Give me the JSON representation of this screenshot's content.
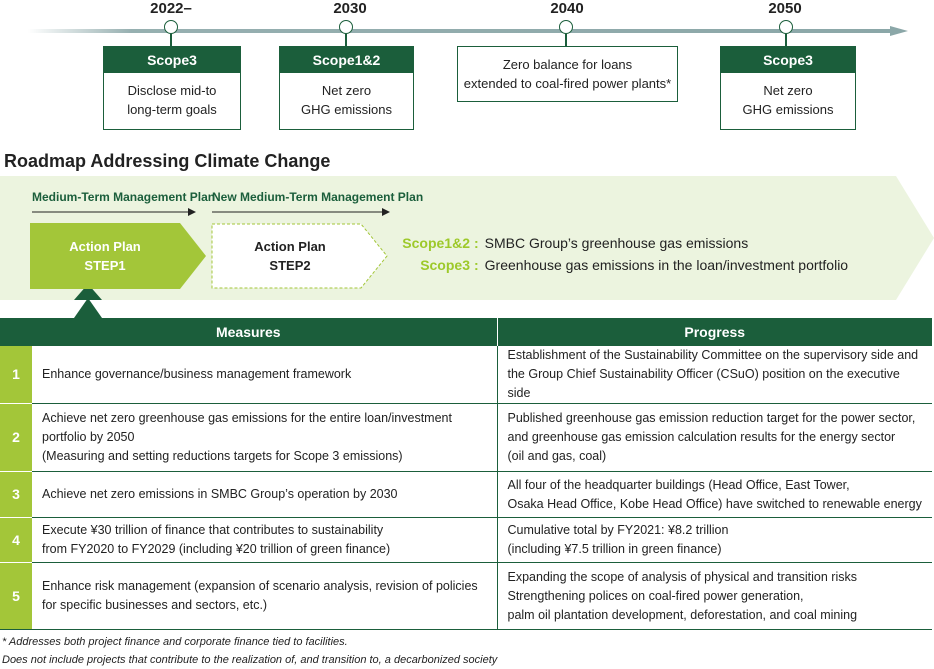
{
  "timeline": {
    "milestones": [
      {
        "year": "2022–",
        "scope": "Scope3",
        "lines": [
          "Disclose mid-to",
          "long-term goals"
        ]
      },
      {
        "year": "2030",
        "scope": "Scope1&2",
        "lines": [
          "Net zero",
          "GHG emissions"
        ]
      },
      {
        "year": "2040",
        "scope": "",
        "lines": [
          "Zero balance for loans",
          "extended to coal-fired power plants*"
        ]
      },
      {
        "year": "2050",
        "scope": "Scope3",
        "lines": [
          "Net zero",
          "GHG emissions"
        ]
      }
    ]
  },
  "roadmap": {
    "title": "Roadmap Addressing Climate Change",
    "plans": [
      "Medium-Term Management Plan",
      "New Medium-Term Management Plan"
    ],
    "step1": {
      "line1": "Action Plan",
      "line2": "STEP1"
    },
    "step2": {
      "line1": "Action Plan",
      "line2": "STEP2"
    },
    "scopes": [
      {
        "key": "Scope1&2",
        "desc": "SMBC Group’s greenhouse gas emissions"
      },
      {
        "key": "Scope3",
        "desc": "Greenhouse gas emissions in the loan/investment portfolio"
      }
    ]
  },
  "colors": {
    "dark_green": "#1b5e3b",
    "lime": "#a3c639",
    "light_band": "#ecf4df"
  },
  "table": {
    "headers": {
      "measures": "Measures",
      "progress": "Progress"
    },
    "rows": [
      {
        "num": "1",
        "measures": [
          "Enhance governance/business management framework"
        ],
        "progress": [
          "Establishment of the Sustainability Committee on the supervisory side and",
          "the Group Chief Sustainability Officer (CSuO) position on the executive side"
        ]
      },
      {
        "num": "2",
        "measures": [
          "Achieve net zero greenhouse gas emissions for the entire loan/investment",
          "portfolio by 2050",
          "(Measuring and setting reductions targets for  Scope 3 emissions)"
        ],
        "progress": [
          "Published greenhouse gas emission reduction target for the power sector,",
          "and greenhouse gas emission calculation results for the energy sector",
          "(oil and gas, coal)"
        ]
      },
      {
        "num": "3",
        "measures": [
          "Achieve net zero emissions in SMBC Group’s operation by 2030"
        ],
        "progress": [
          "All four of the headquarter buildings (Head Office, East Tower,",
          "Osaka Head Office, Kobe Head Office) have switched to renewable energy"
        ]
      },
      {
        "num": "4",
        "measures": [
          "Execute ¥30 trillion of finance that contributes to sustainability",
          "from FY2020 to FY2029 (including ¥20 trillion of green finance)"
        ],
        "progress": [
          "Cumulative total by FY2021: ¥8.2 trillion",
          "(including ¥7.5 trillion in green finance)"
        ]
      },
      {
        "num": "5",
        "measures": [
          "Enhance risk management (expansion of scenario analysis, revision of policies",
          "for specific businesses and sectors, etc.)"
        ],
        "progress": [
          "Expanding the scope of analysis of physical and transition risks",
          "Strengthening polices on coal-fired power generation,",
          "palm oil plantation development, deforestation, and coal mining"
        ]
      }
    ]
  },
  "notes": [
    "* Addresses both project finance and corporate finance tied to facilities.",
    "Does not include projects that contribute to the realization of, and transition to, a decarbonized society"
  ]
}
